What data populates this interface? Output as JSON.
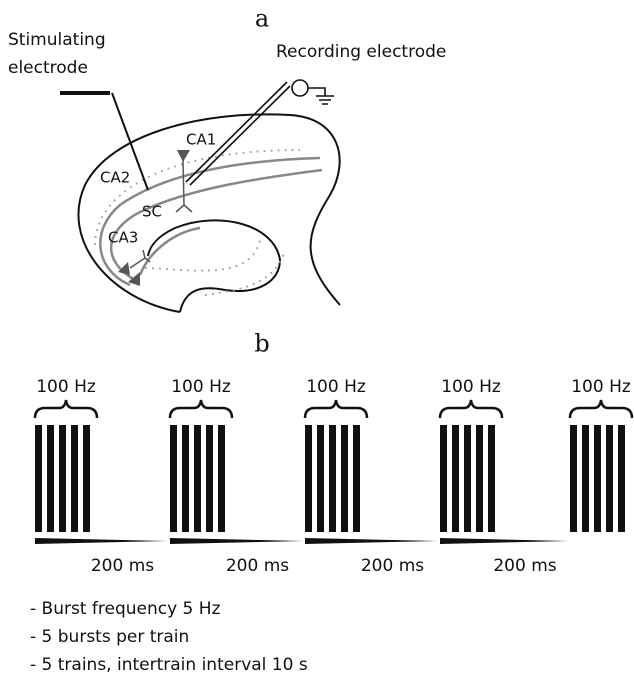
{
  "panel_a": {
    "label": "a",
    "stimulating": [
      "Stimulating",
      "electrode"
    ],
    "recording": "Recording electrode",
    "regions": {
      "ca1": "CA1",
      "ca2": "CA2",
      "ca3": "CA3",
      "sc": "SC"
    }
  },
  "panel_b": {
    "label": "b",
    "bursts": [
      "100 Hz",
      "100 Hz",
      "100 Hz",
      "100 Hz",
      "100 Hz"
    ],
    "intervals": [
      "200 ms",
      "200 ms",
      "200 ms",
      "200 ms"
    ]
  },
  "notes": [
    "- Burst frequency 5 Hz",
    "- 5 bursts per train",
    "- 5 trains, intertrain interval 10 s"
  ]
}
